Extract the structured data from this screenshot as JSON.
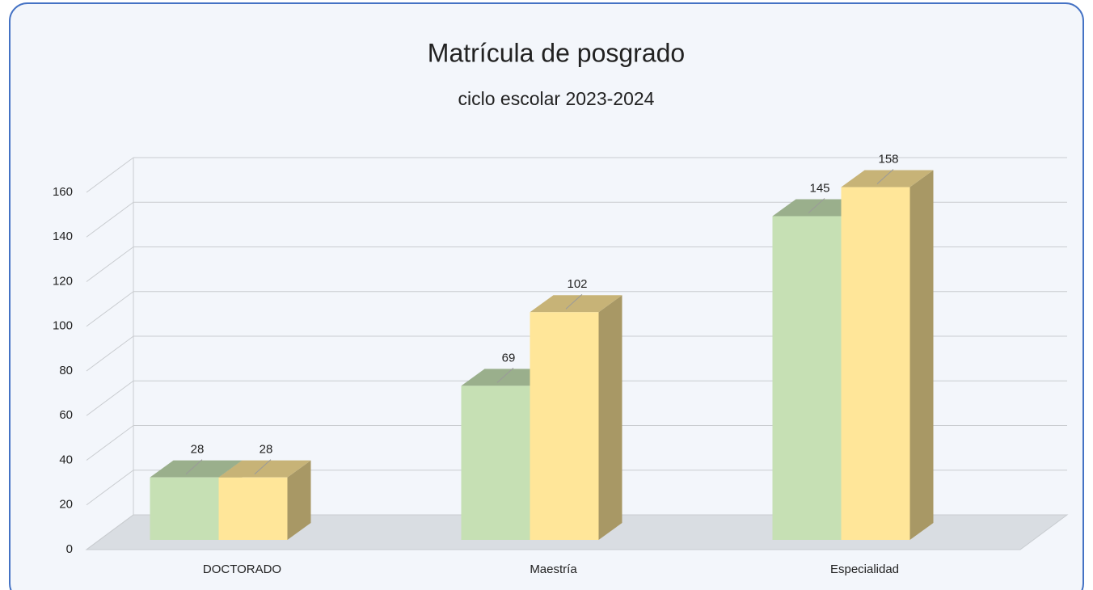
{
  "chart_data": {
    "type": "bar3d",
    "title": "Matrícula de posgrado",
    "subtitle": "ciclo escolar 2023-2024",
    "categories": [
      "DOCTORADO",
      "Maestría",
      "Especialidad"
    ],
    "series": [
      {
        "color": "#c6e0b4",
        "values": [
          28,
          69,
          145
        ]
      },
      {
        "color": "#ffe699",
        "values": [
          28,
          102,
          158
        ]
      }
    ],
    "ylim": [
      0,
      160
    ],
    "yticks": [
      0,
      20,
      40,
      60,
      80,
      100,
      120,
      140,
      160
    ],
    "grid": true
  }
}
